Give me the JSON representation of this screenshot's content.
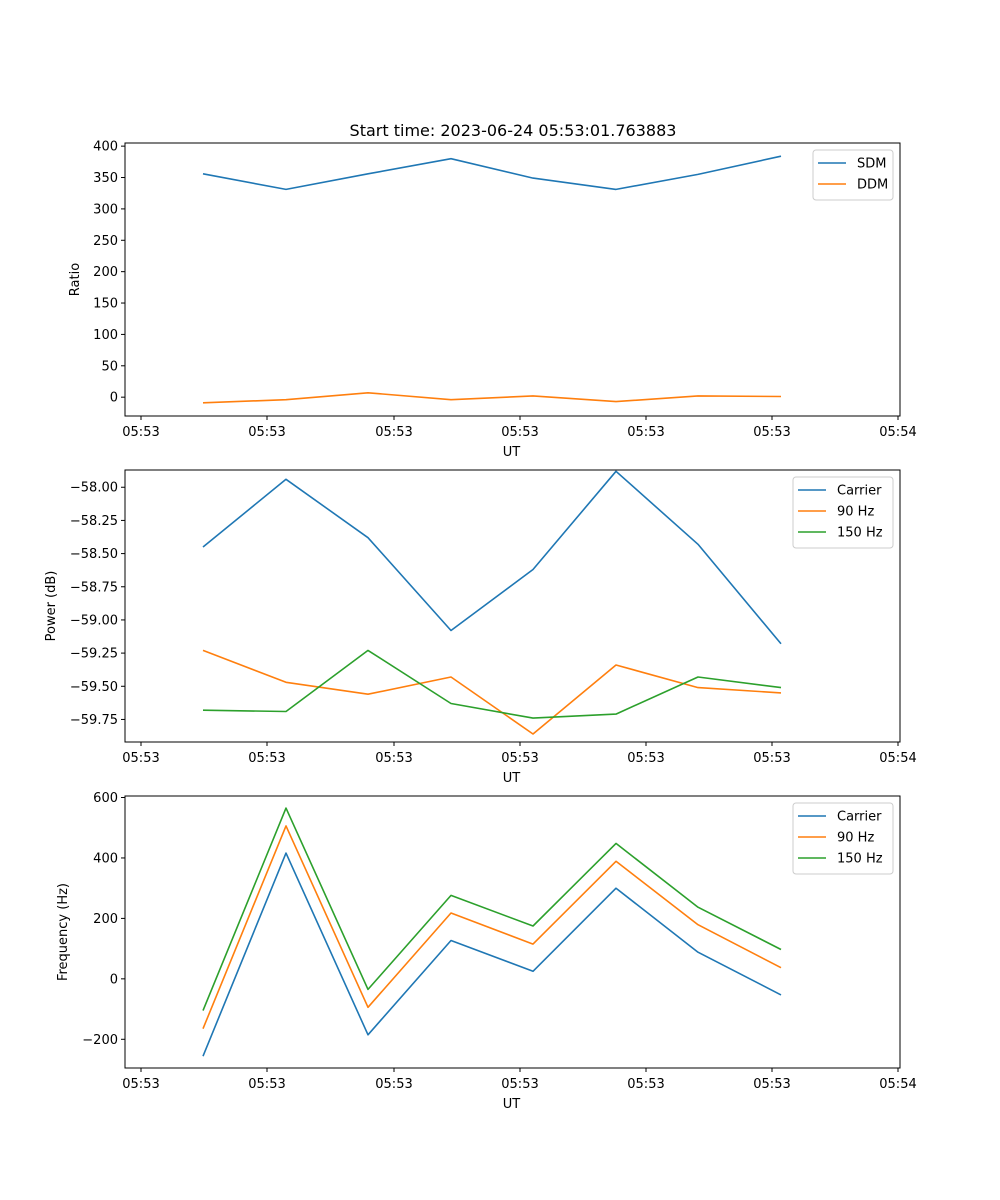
{
  "title": "Start time: 2023-06-24 05:53:01.763883",
  "chart_data": [
    {
      "type": "line",
      "xlabel": "UT",
      "ylabel": "Ratio",
      "x_tick_labels": [
        "05:53",
        "05:53",
        "05:53",
        "05:53",
        "05:53",
        "05:53",
        "05:54"
      ],
      "y_ticks": [
        0,
        50,
        100,
        150,
        200,
        250,
        300,
        350,
        400
      ],
      "y_tick_labels": [
        "0",
        "50",
        "100",
        "150",
        "200",
        "250",
        "300",
        "350",
        "400"
      ],
      "ylim": [
        -30,
        405
      ],
      "legend_position": "top-right",
      "grid": false,
      "series": [
        {
          "name": "SDM",
          "color": "#1f77b4",
          "values": [
            356,
            331,
            356,
            380,
            349,
            331,
            355,
            384
          ]
        },
        {
          "name": "DDM",
          "color": "#ff7f0e",
          "values": [
            -9,
            -4,
            7,
            -4,
            2,
            -7,
            2,
            1
          ]
        }
      ]
    },
    {
      "type": "line",
      "xlabel": "UT",
      "ylabel": "Power (dB)",
      "x_tick_labels": [
        "05:53",
        "05:53",
        "05:53",
        "05:53",
        "05:53",
        "05:53",
        "05:54"
      ],
      "y_ticks": [
        -59.75,
        -59.5,
        -59.25,
        -59.0,
        -58.75,
        -58.5,
        -58.25,
        -58.0
      ],
      "y_tick_labels": [
        "−59.75",
        "−59.50",
        "−59.25",
        "−59.00",
        "−58.75",
        "−58.50",
        "−58.25",
        "−58.00"
      ],
      "ylim": [
        -59.92,
        -57.87
      ],
      "legend_position": "top-right",
      "grid": false,
      "series": [
        {
          "name": "Carrier",
          "color": "#1f77b4",
          "values": [
            -58.45,
            -57.94,
            -58.38,
            -59.08,
            -58.62,
            -57.88,
            -58.43,
            -59.18
          ]
        },
        {
          "name": "90 Hz",
          "color": "#ff7f0e",
          "values": [
            -59.23,
            -59.47,
            -59.56,
            -59.43,
            -59.86,
            -59.34,
            -59.51,
            -59.55
          ]
        },
        {
          "name": "150 Hz",
          "color": "#2ca02c",
          "values": [
            -59.68,
            -59.69,
            -59.23,
            -59.63,
            -59.74,
            -59.71,
            -59.43,
            -59.51
          ]
        }
      ]
    },
    {
      "type": "line",
      "xlabel": "UT",
      "ylabel": "Frequency (Hz)",
      "x_tick_labels": [
        "05:53",
        "05:53",
        "05:53",
        "05:53",
        "05:53",
        "05:53",
        "05:54"
      ],
      "y_ticks": [
        -200,
        0,
        200,
        400,
        600
      ],
      "y_tick_labels": [
        "−200",
        "0",
        "200",
        "400",
        "600"
      ],
      "ylim": [
        -295,
        605
      ],
      "legend_position": "top-right",
      "grid": false,
      "series": [
        {
          "name": "Carrier",
          "color": "#1f77b4",
          "values": [
            -256,
            416,
            -185,
            127,
            25,
            300,
            88,
            -53
          ]
        },
        {
          "name": "90 Hz",
          "color": "#ff7f0e",
          "values": [
            -165,
            506,
            -94,
            218,
            115,
            389,
            179,
            37
          ]
        },
        {
          "name": "150 Hz",
          "color": "#2ca02c",
          "values": [
            -105,
            565,
            -35,
            276,
            175,
            448,
            237,
            97
          ]
        }
      ]
    }
  ]
}
